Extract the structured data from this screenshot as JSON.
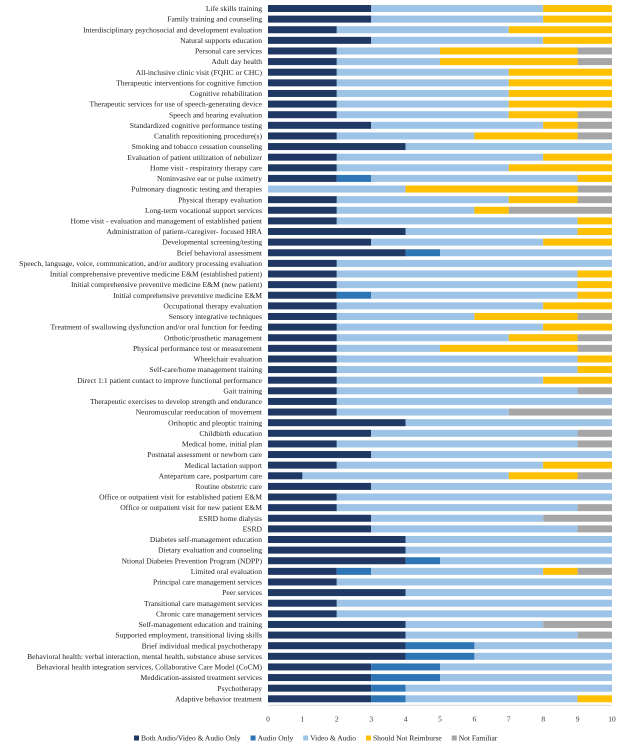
{
  "chart_data": {
    "type": "bar",
    "orientation": "horizontal",
    "stacked": true,
    "xlim": [
      0,
      10
    ],
    "x_ticks": [
      "0",
      "1",
      "2",
      "3",
      "4",
      "5",
      "6",
      "7",
      "8",
      "9",
      "10"
    ],
    "grid": false,
    "legend_position": "bottom",
    "categories": [
      "Life skills training",
      "Family training and counseling",
      "Interdisciplinary psychosocial and development evaluation",
      "Natural supports education",
      "Personal care services",
      "Adult day health",
      "All-inclusive clinic visit (FQHC or CHC)",
      "Therapeutic interventions for cognitive function",
      "Cognitive rehabilitation",
      "Therapeutic services for use of speech-generating device",
      "Speech and hearing evaluation",
      "Standardized cognitive performance testing",
      "Canalith repositioning procedure(s)",
      "Smoking and tobacco cessation counseling",
      "Evaluation of patient utilization of nebulizer",
      "Home visit - respiratory therapy care",
      "Noninvasive ear or pulse oximetry",
      "Pulmonary diagnostic testing and therapies",
      "Physical therapy evaluation",
      "Long-term vocational support services",
      "Home visit - evaluation and management of established patient",
      "Administration of patient-/caregiver- focused HRA",
      "Developmental screening/testing",
      "Brief behavioral assessment",
      "Speech, language, voice, communication, and/or auditory processing evaluation",
      "Initial comprehensive preventive medicine E&M (established patient)",
      "Initial comprehensive preventive medicine E&M (new patient)",
      "Initial comprehensive preventive medicine E&M",
      "Occupational therapy evaluation",
      "Sensory integrative techniques",
      "Treatment of swallowing dysfunction and/or oral function for feeding",
      "Orthotic/prosthetic management",
      "Physical performance test or measurement",
      "Wheelchair evaluation",
      "Self-care/home management training",
      "Direct 1:1 patient contact to improve functional performance",
      "Gait training",
      "Therapeutic exercises to develop strength and endurance",
      "Neuromuscular reeducation of movement",
      "Orthoptic and pleoptic training",
      "Childbirth education",
      "Medical home, initial plan",
      "Postnatal assessment  or newborn care",
      "Medical lactation support",
      "Antepartum care, postpartum care",
      "Routine obstetric care",
      "Office or outpatient visit for established patient E&M",
      "Office or outpatient visit for new patient E&M",
      "ESRD home dialysis",
      "ESRD",
      "Diabetes self-management education",
      "Dietary evaluation and counseling",
      "Ntional Diabetes Prevention Program (NDPP)",
      "Limited oral evaluation",
      "Principal care management services",
      "Peer services",
      "Transitional care management services",
      "Chronic care management services",
      "Self-management education and training",
      "Supported employment, transitional living skills",
      "Brief individual medical psychotherapy",
      "Behavioral health: verbal interaction, mental health, substance abuse services",
      "Behavioral health integration services, Collaborative Care Model (CoCM)",
      "Meddication-assisted treatment services",
      "Psychotherapy",
      "Adaptive behavior treatment"
    ],
    "series": [
      {
        "name": "Both Audio/Video & Audio Only",
        "color": "#1f3864",
        "values": [
          3,
          3,
          2,
          3,
          2,
          2,
          2,
          2,
          2,
          2,
          2,
          3,
          2,
          4,
          2,
          2,
          2,
          0,
          2,
          2,
          2,
          4,
          3,
          4,
          2,
          2,
          2,
          2,
          2,
          2,
          2,
          2,
          2,
          2,
          2,
          2,
          2,
          2,
          2,
          4,
          3,
          2,
          3,
          2,
          1,
          3,
          2,
          2,
          3,
          3,
          4,
          4,
          4,
          2,
          2,
          4,
          2,
          2,
          4,
          4,
          4,
          4,
          3,
          3,
          3,
          3
        ]
      },
      {
        "name": "Audio Only",
        "color": "#2e75b6",
        "values": [
          0,
          0,
          0,
          0,
          0,
          0,
          0,
          0,
          0,
          0,
          0,
          0,
          0,
          0,
          0,
          0,
          1,
          0,
          0,
          0,
          0,
          0,
          0,
          1,
          0,
          0,
          0,
          1,
          0,
          0,
          0,
          0,
          0,
          0,
          0,
          0,
          0,
          0,
          0,
          0,
          0,
          0,
          0,
          0,
          0,
          0,
          0,
          0,
          0,
          0,
          0,
          0,
          1,
          1,
          0,
          0,
          0,
          0,
          0,
          0,
          2,
          2,
          2,
          2,
          1,
          1
        ]
      },
      {
        "name": "Video & Audio",
        "color": "#9dc3e6",
        "values": [
          5,
          5,
          5,
          5,
          3,
          3,
          5,
          5,
          5,
          5,
          5,
          5,
          4,
          6,
          6,
          5,
          6,
          4,
          5,
          4,
          7,
          5,
          5,
          5,
          8,
          7,
          7,
          6,
          6,
          4,
          6,
          5,
          3,
          7,
          7,
          6,
          7,
          8,
          5,
          6,
          6,
          7,
          7,
          6,
          6,
          7,
          8,
          7,
          5,
          6,
          6,
          6,
          5,
          5,
          8,
          6,
          8,
          8,
          4,
          5,
          4,
          4,
          5,
          5,
          6,
          5
        ]
      },
      {
        "name": "Should Not Reimburse",
        "color": "#ffc000",
        "values": [
          2,
          2,
          3,
          2,
          4,
          4,
          3,
          3,
          3,
          3,
          2,
          1,
          3,
          0,
          2,
          3,
          1,
          5,
          2,
          1,
          1,
          1,
          2,
          0,
          0,
          1,
          1,
          1,
          2,
          3,
          2,
          2,
          4,
          1,
          1,
          2,
          0,
          0,
          0,
          0,
          0,
          0,
          0,
          2,
          2,
          0,
          0,
          0,
          0,
          0,
          0,
          0,
          0,
          1,
          0,
          0,
          0,
          0,
          0,
          0,
          0,
          0,
          0,
          0,
          0,
          1
        ]
      },
      {
        "name": "Not Familiar",
        "color": "#a6a6a6",
        "values": [
          0,
          0,
          0,
          0,
          1,
          1,
          0,
          0,
          0,
          0,
          1,
          1,
          1,
          0,
          0,
          0,
          0,
          1,
          1,
          3,
          0,
          0,
          0,
          0,
          0,
          0,
          0,
          0,
          0,
          1,
          0,
          1,
          1,
          0,
          0,
          0,
          1,
          0,
          3,
          0,
          1,
          1,
          0,
          0,
          1,
          0,
          0,
          1,
          2,
          1,
          0,
          0,
          0,
          1,
          0,
          0,
          0,
          0,
          2,
          1,
          0,
          0,
          0,
          0,
          0,
          0
        ]
      }
    ]
  }
}
